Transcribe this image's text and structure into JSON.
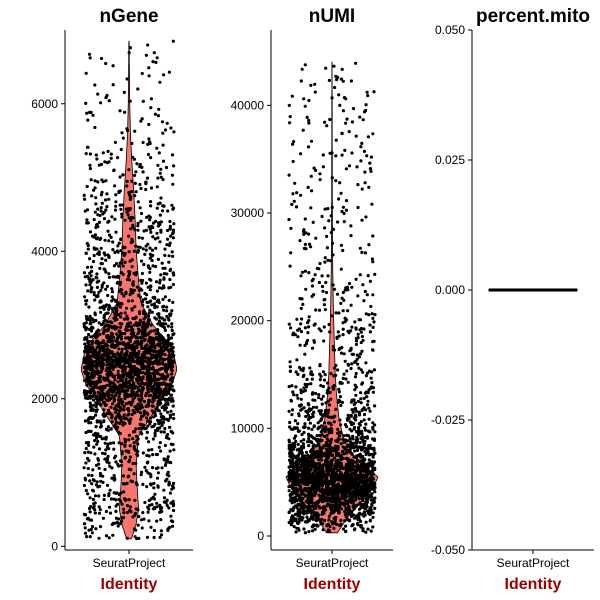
{
  "chart_data": [
    {
      "type": "violin",
      "title": "nGene",
      "xlabel": "Identity",
      "ylabel": "",
      "categories": [
        "SeuratProject"
      ],
      "yticks": [
        0,
        2000,
        4000,
        6000
      ],
      "ytick_labels": [
        "0",
        "2000",
        "4000",
        "6000"
      ],
      "ylim": [
        -50,
        7000
      ],
      "series": [
        {
          "values_summary": {
            "min": 100,
            "max": 6850,
            "median": 2400
          },
          "density_profile": [
            [
              100,
              0.05
            ],
            [
              300,
              0.15
            ],
            [
              500,
              0.2
            ],
            [
              800,
              0.17
            ],
            [
              1100,
              0.15
            ],
            [
              1500,
              0.2
            ],
            [
              1900,
              0.6
            ],
            [
              2200,
              0.9
            ],
            [
              2400,
              1.0
            ],
            [
              2700,
              0.9
            ],
            [
              3000,
              0.5
            ],
            [
              3300,
              0.25
            ],
            [
              3600,
              0.2
            ],
            [
              4000,
              0.15
            ],
            [
              4400,
              0.13
            ],
            [
              4800,
              0.1
            ],
            [
              5200,
              0.06
            ],
            [
              5600,
              0.03
            ],
            [
              6000,
              0.015
            ],
            [
              6850,
              0.003
            ]
          ]
        }
      ]
    },
    {
      "type": "violin",
      "title": "nUMI",
      "xlabel": "Identity",
      "ylabel": "",
      "categories": [
        "SeuratProject"
      ],
      "yticks": [
        0,
        10000,
        20000,
        30000,
        40000
      ],
      "ytick_labels": [
        "0",
        "10000",
        "20000",
        "30000",
        "40000"
      ],
      "ylim": [
        -1300,
        47000
      ],
      "series": [
        {
          "values_summary": {
            "min": 300,
            "max": 44000,
            "median": 5200
          },
          "density_profile": [
            [
              300,
              0.12
            ],
            [
              1500,
              0.3
            ],
            [
              3000,
              0.6
            ],
            [
              4500,
              0.9
            ],
            [
              5500,
              1.0
            ],
            [
              7000,
              0.55
            ],
            [
              9000,
              0.25
            ],
            [
              11000,
              0.15
            ],
            [
              13000,
              0.1
            ],
            [
              15000,
              0.07
            ],
            [
              18000,
              0.05
            ],
            [
              21000,
              0.03
            ],
            [
              25000,
              0.015
            ],
            [
              30000,
              0.008
            ],
            [
              44000,
              0.002
            ]
          ]
        }
      ]
    },
    {
      "type": "violin",
      "title": "percent.mito",
      "xlabel": "Identity",
      "ylabel": "",
      "categories": [
        "SeuratProject"
      ],
      "yticks": [
        -0.05,
        -0.025,
        0,
        0.025,
        0.05
      ],
      "ytick_labels": [
        "-0.050",
        "-0.025",
        "0.000",
        "0.025",
        "0.050"
      ],
      "ylim": [
        -0.05,
        0.05
      ],
      "series": [
        {
          "values_summary": {
            "min": 0,
            "max": 0,
            "median": 0
          },
          "density_profile": []
        }
      ]
    }
  ],
  "colors": {
    "violin_fill": "#f8766d",
    "points": "#000000",
    "axis_title": "#990000"
  }
}
